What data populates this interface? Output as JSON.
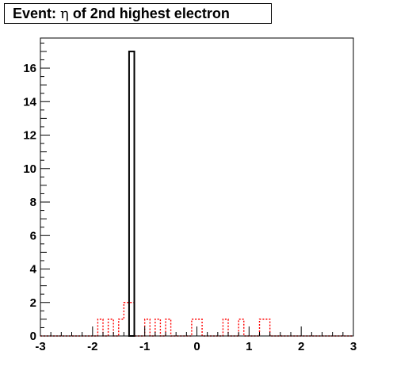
{
  "title": {
    "prefix": "Event: ",
    "symbol": "η",
    "suffix": " of 2nd highest electron"
  },
  "chart_data": {
    "type": "bar",
    "title": "Event: η of 2nd highest electron",
    "xlim": [
      -3,
      3
    ],
    "ylim": [
      0,
      17.8
    ],
    "x_ticks": [
      -3,
      -2,
      -1,
      0,
      1,
      2,
      3
    ],
    "y_ticks": [
      0,
      2,
      4,
      6,
      8,
      10,
      12,
      14,
      16
    ],
    "bin_width": 0.1,
    "grid": false,
    "legend": "none",
    "series": [
      {
        "style": "solid",
        "color": "#000000",
        "bins": [
          {
            "x0": -1.3,
            "x1": -1.2,
            "value": 17
          }
        ]
      },
      {
        "style": "dotted",
        "color": "#ff0000",
        "bins": [
          {
            "x0": -1.9,
            "x1": -1.8,
            "value": 1
          },
          {
            "x0": -1.7,
            "x1": -1.6,
            "value": 1
          },
          {
            "x0": -1.5,
            "x1": -1.4,
            "value": 1
          },
          {
            "x0": -1.4,
            "x1": -1.3,
            "value": 2
          },
          {
            "x0": -1.3,
            "x1": -1.2,
            "value": 2
          },
          {
            "x0": -1.0,
            "x1": -0.9,
            "value": 1
          },
          {
            "x0": -0.8,
            "x1": -0.7,
            "value": 1
          },
          {
            "x0": -0.6,
            "x1": -0.5,
            "value": 1
          },
          {
            "x0": -0.1,
            "x1": 0.0,
            "value": 1
          },
          {
            "x0": 0.0,
            "x1": 0.1,
            "value": 1
          },
          {
            "x0": 0.5,
            "x1": 0.6,
            "value": 1
          },
          {
            "x0": 0.8,
            "x1": 0.9,
            "value": 1
          },
          {
            "x0": 1.2,
            "x1": 1.3,
            "value": 1
          },
          {
            "x0": 1.3,
            "x1": 1.4,
            "value": 1
          }
        ]
      }
    ]
  }
}
